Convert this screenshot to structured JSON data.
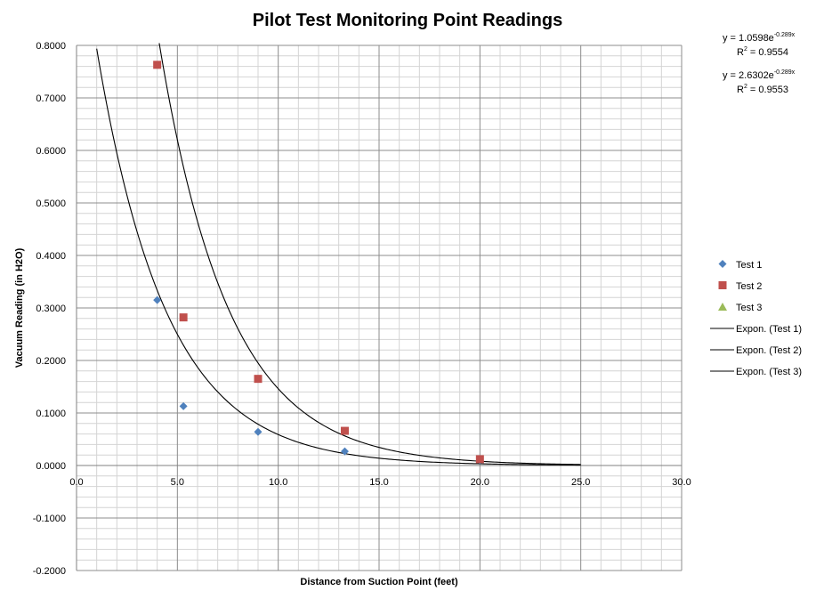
{
  "chart_data": {
    "type": "scatter",
    "title": "Pilot Test Monitoring Point Readings",
    "xlabel": "Distance from Suction Point (feet)",
    "ylabel": "Vacuum Reading (in H2O)",
    "xlim": [
      0,
      30
    ],
    "ylim": [
      -0.2,
      0.8
    ],
    "x_ticks": [
      "0.0",
      "5.0",
      "10.0",
      "15.0",
      "20.0",
      "25.0",
      "30.0"
    ],
    "y_ticks": [
      "0.8000",
      "0.7000",
      "0.6000",
      "0.5000",
      "0.4000",
      "0.3000",
      "0.2000",
      "0.1000",
      "0.0000",
      "-0.1000",
      "-0.2000"
    ],
    "grid": true,
    "legend_position": "right",
    "series": [
      {
        "name": "Test 1",
        "marker": "diamond",
        "color": "#4F81BD",
        "x": [
          4.0,
          5.3,
          9.0,
          13.3,
          20.0
        ],
        "y": [
          0.315,
          0.113,
          0.064,
          0.027,
          0.01
        ]
      },
      {
        "name": "Test 2",
        "marker": "square",
        "color": "#C0504D",
        "x": [
          4.0,
          5.3,
          9.0,
          13.3,
          20.0
        ],
        "y": [
          0.763,
          0.282,
          0.165,
          0.066,
          0.012
        ]
      },
      {
        "name": "Test 3",
        "marker": "triangle",
        "color": "#9BBB59",
        "x": [],
        "y": []
      }
    ],
    "trendlines": [
      {
        "name": "Expon. (Test 1)",
        "a": 1.0598,
        "b": -0.289,
        "x_range": [
          1.0,
          25.0
        ],
        "color": "#000000"
      },
      {
        "name": "Expon. (Test 2)",
        "a": 2.6302,
        "b": -0.289,
        "x_range": [
          4.1,
          25.0
        ],
        "color": "#000000"
      },
      {
        "name": "Expon. (Test 3)",
        "a": null,
        "b": null,
        "x_range": null,
        "color": "#000000"
      }
    ],
    "equations": [
      {
        "eq_main": "y = 1.0598e",
        "eq_exp": "-0.289x",
        "r2_main": "R",
        "r2_exp": "2",
        "r2_val": " = 0.9554"
      },
      {
        "eq_main": "y = 2.6302e",
        "eq_exp": "-0.289x",
        "r2_main": "R",
        "r2_exp": "2",
        "r2_val": " = 0.9553"
      }
    ]
  }
}
